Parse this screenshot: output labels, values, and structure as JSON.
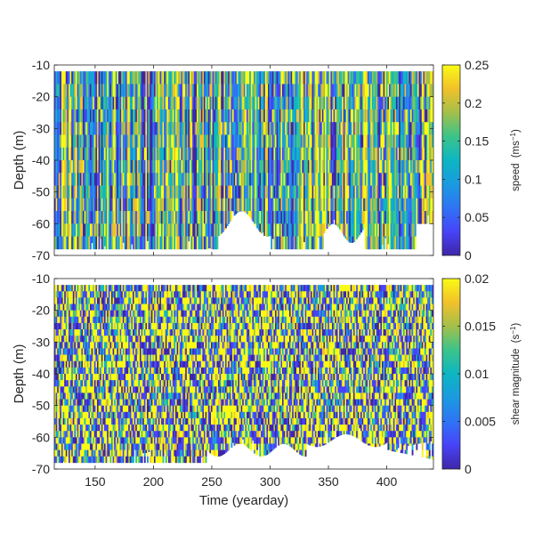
{
  "chart_data": [
    {
      "type": "heatmap",
      "ylabel": "Depth (m)",
      "xlabel": "",
      "xlim": [
        115,
        440
      ],
      "ylim": [
        -70,
        -10
      ],
      "x_ticks": [
        150,
        200,
        250,
        300,
        350,
        400
      ],
      "y_ticks": [
        -10,
        -20,
        -30,
        -40,
        -50,
        -60,
        -70
      ],
      "colorbar": {
        "label": "speed",
        "unit": "(ms",
        "unit_exp": "−1",
        "unit_close": ")",
        "range": [
          0,
          0.25
        ],
        "ticks": [
          "0",
          "0.05",
          "0.1",
          "0.15",
          "0.2",
          "0.25"
        ],
        "colormap": "parula"
      },
      "data_depth_range": [
        -68,
        -12
      ],
      "data_summary": "Dense, highly variable vertical stripes; bottom gaps (no data) near days 255–300 and 345–380; high values (yellow) more frequent after yearday ~330"
    },
    {
      "type": "heatmap",
      "ylabel": "Depth (m)",
      "xlabel": "Time (yearday)",
      "xlim": [
        115,
        440
      ],
      "ylim": [
        -70,
        -10
      ],
      "x_ticks": [
        150,
        200,
        250,
        300,
        350,
        400
      ],
      "y_ticks": [
        -10,
        -20,
        -30,
        -40,
        -50,
        -60,
        -70
      ],
      "colorbar": {
        "label": "shear magnitude",
        "unit": "(s",
        "unit_exp": "−1",
        "unit_close": ")",
        "range": [
          0,
          0.02
        ],
        "ticks": [
          "0",
          "0.005",
          "0.01",
          "0.015",
          "0.02"
        ],
        "colormap": "parula"
      },
      "data_depth_range": [
        -68,
        -12
      ],
      "data_summary": "Patchy checkered pattern of low (blue) and high (yellow) shear; no data near bottom after yearday ~245 and in deeper layers after ~400"
    }
  ]
}
